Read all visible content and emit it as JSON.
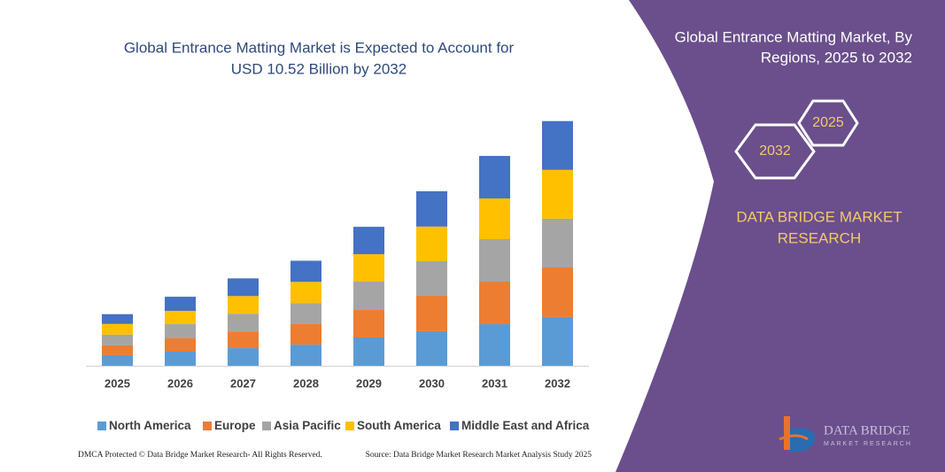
{
  "chart_data": {
    "type": "stacked-bar",
    "title": [
      "Global Entrance Matting Market is Expected to Account for",
      "USD 10.52 Billion by 2032"
    ],
    "categories": [
      "2025",
      "2026",
      "2027",
      "2028",
      "2029",
      "2030",
      "2031",
      "2032"
    ],
    "series": [
      {
        "name": "North America",
        "color": "#5b9bd5",
        "values": [
          0.46,
          0.61,
          0.76,
          0.91,
          1.22,
          1.49,
          1.79,
          2.1
        ]
      },
      {
        "name": "Europe",
        "color": "#ed7d31",
        "values": [
          0.42,
          0.57,
          0.72,
          0.88,
          1.18,
          1.52,
          1.83,
          2.13
        ]
      },
      {
        "name": "Asia Pacific",
        "color": "#a5a5a5",
        "values": [
          0.46,
          0.61,
          0.76,
          0.91,
          1.22,
          1.49,
          1.83,
          2.1
        ]
      },
      {
        "name": "South America",
        "color": "#ffc000",
        "values": [
          0.46,
          0.57,
          0.76,
          0.91,
          1.18,
          1.49,
          1.75,
          2.1
        ]
      },
      {
        "name": "Middle East and Africa",
        "color": "#4472c4",
        "values": [
          0.42,
          0.61,
          0.76,
          0.91,
          1.18,
          1.52,
          1.83,
          2.1
        ]
      }
    ],
    "ylim": [
      0,
      11
    ]
  },
  "side_panel": {
    "title": [
      "Global Entrance Matting Market, By",
      "Regions, 2025 to 2032"
    ],
    "badges": [
      "2032",
      "2025"
    ],
    "brand": [
      "DATA BRIDGE MARKET",
      "RESEARCH"
    ],
    "logo": [
      "DATA BRIDGE",
      "MARKET RESEARCH"
    ]
  },
  "footer": {
    "left": "DMCA Protected © Data Bridge Market Research- All Rights Reserved.",
    "right": "Source: Data Bridge Market Research Market Analysis Study 2025"
  }
}
